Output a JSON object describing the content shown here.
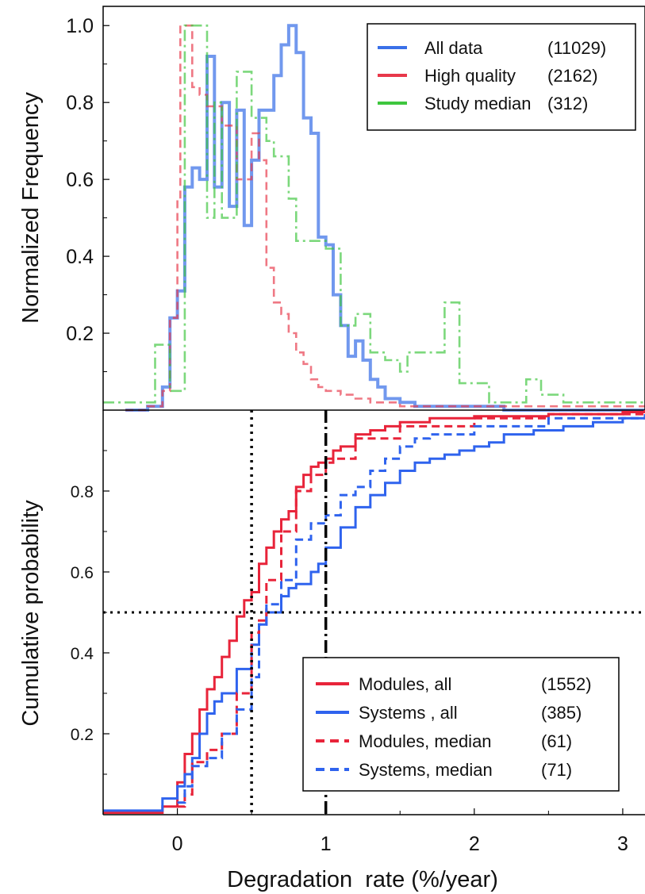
{
  "colors": {
    "all_data": "#3a70e8",
    "high_quality": "#e8384a",
    "study_median": "#3ec63e",
    "systems": "#2f63ee",
    "modules": "#e8243a",
    "guide": "#000000"
  },
  "x_axis": {
    "label": "Degradation  rate (%/year)",
    "range": [
      -0.5,
      3.15
    ],
    "ticks": [
      0,
      1,
      2,
      3
    ],
    "tick_labels": [
      "0",
      "1",
      "2",
      "3"
    ]
  },
  "chart_data": [
    {
      "type": "line",
      "step": true,
      "ylabel": "Normalized Frequency",
      "ylim": [
        0,
        1.05
      ],
      "yticks": [
        0.2,
        0.4,
        0.6,
        0.8,
        1.0
      ],
      "ytick_labels": [
        "0.2",
        "0.4",
        "0.6",
        "0.8",
        "1.0"
      ],
      "legend_position": "top-right",
      "series": [
        {
          "name": "All data",
          "count": "(11029)",
          "style": "solid",
          "x": [
            -0.35,
            -0.2,
            -0.1,
            -0.05,
            0,
            0.05,
            0.1,
            0.15,
            0.2,
            0.25,
            0.3,
            0.35,
            0.4,
            0.45,
            0.5,
            0.55,
            0.6,
            0.65,
            0.7,
            0.75,
            0.8,
            0.85,
            0.9,
            0.95,
            1.0,
            1.05,
            1.1,
            1.15,
            1.2,
            1.25,
            1.3,
            1.35,
            1.4,
            1.5,
            1.6,
            1.8,
            2.2,
            3.15
          ],
          "y": [
            0,
            0.01,
            0.06,
            0.24,
            0.31,
            0.58,
            0.63,
            0.6,
            0.92,
            0.58,
            0.8,
            0.53,
            0.78,
            0.48,
            0.65,
            0.78,
            0.78,
            0.87,
            0.95,
            1.0,
            0.93,
            0.76,
            0.72,
            0.45,
            0.43,
            0.3,
            0.22,
            0.14,
            0.18,
            0.13,
            0.08,
            0.06,
            0.03,
            0.02,
            0.01,
            0.01,
            0.0,
            0.0
          ]
        },
        {
          "name": "High quality",
          "count": "(2162)",
          "style": "dashed",
          "x": [
            -0.35,
            -0.2,
            -0.1,
            -0.05,
            0,
            0.02,
            0.05,
            0.1,
            0.15,
            0.2,
            0.3,
            0.4,
            0.5,
            0.55,
            0.6,
            0.65,
            0.7,
            0.75,
            0.8,
            0.85,
            0.9,
            0.95,
            1.0,
            1.1,
            1.2,
            1.3,
            1.4,
            1.5,
            1.6,
            1.8,
            3.15
          ],
          "y": [
            0,
            0.01,
            0.05,
            0.24,
            0.55,
            1.0,
            1.0,
            0.84,
            0.82,
            0.79,
            0.74,
            0.6,
            0.72,
            0.65,
            0.37,
            0.28,
            0.25,
            0.2,
            0.15,
            0.12,
            0.08,
            0.06,
            0.05,
            0.04,
            0.03,
            0.02,
            0.02,
            0.01,
            0.01,
            0.01,
            0.01
          ]
        },
        {
          "name": "Study median",
          "count": "(312)",
          "style": "dashdot",
          "x": [
            -0.5,
            -0.25,
            -0.15,
            -0.05,
            0,
            0.05,
            0.1,
            0.2,
            0.25,
            0.3,
            0.4,
            0.5,
            0.6,
            0.65,
            0.75,
            0.8,
            0.9,
            1.0,
            1.1,
            1.2,
            1.25,
            1.3,
            1.4,
            1.5,
            1.55,
            1.65,
            1.7,
            1.8,
            1.9,
            2.1,
            2.2,
            2.35,
            2.45,
            2.6,
            3.15
          ],
          "y": [
            0.02,
            0.02,
            0.17,
            0.05,
            0.05,
            1.0,
            1.0,
            0.5,
            0.8,
            0.5,
            0.88,
            0.76,
            0.7,
            0.66,
            0.55,
            0.44,
            0.44,
            0.42,
            0.22,
            0.25,
            0.25,
            0.15,
            0.13,
            0.1,
            0.15,
            0.15,
            0.15,
            0.28,
            0.07,
            0.02,
            0.02,
            0.08,
            0.04,
            0.02,
            0.02
          ]
        }
      ]
    },
    {
      "type": "line",
      "step": true,
      "ylabel": "Cumulative probability",
      "ylim": [
        0,
        1.0
      ],
      "yticks": [
        0.2,
        0.4,
        0.6,
        0.8
      ],
      "ytick_labels": [
        "0.2",
        "0.4",
        "0.6",
        "0.8"
      ],
      "legend_position": "bottom-right",
      "reference_lines": {
        "y": 0.5,
        "x_dotted": 0.5,
        "x_dashdot": 1.0
      },
      "series": [
        {
          "name": "Modules, all",
          "count": "(1552)",
          "style": "solid",
          "x": [
            -0.5,
            -0.2,
            -0.1,
            0,
            0.05,
            0.1,
            0.15,
            0.2,
            0.25,
            0.3,
            0.35,
            0.4,
            0.45,
            0.5,
            0.55,
            0.6,
            0.65,
            0.7,
            0.75,
            0.8,
            0.85,
            0.9,
            0.95,
            1.0,
            1.05,
            1.1,
            1.2,
            1.3,
            1.4,
            1.5,
            1.7,
            2.0,
            2.5,
            3.0,
            3.15
          ],
          "y": [
            0.005,
            0.005,
            0.02,
            0.08,
            0.15,
            0.2,
            0.26,
            0.31,
            0.34,
            0.39,
            0.43,
            0.49,
            0.53,
            0.55,
            0.62,
            0.66,
            0.7,
            0.73,
            0.75,
            0.81,
            0.84,
            0.86,
            0.87,
            0.88,
            0.9,
            0.91,
            0.94,
            0.95,
            0.96,
            0.97,
            0.98,
            0.985,
            0.99,
            0.995,
            1.0
          ]
        },
        {
          "name": "Systems , all",
          "count": "(385)",
          "style": "solid",
          "x": [
            -0.5,
            -0.2,
            -0.1,
            0,
            0.05,
            0.1,
            0.15,
            0.2,
            0.25,
            0.3,
            0.4,
            0.5,
            0.55,
            0.6,
            0.7,
            0.75,
            0.8,
            0.9,
            0.95,
            1.0,
            1.1,
            1.2,
            1.3,
            1.4,
            1.5,
            1.6,
            1.7,
            1.8,
            1.9,
            2.0,
            2.1,
            2.2,
            2.4,
            2.6,
            2.8,
            3.0,
            3.15
          ],
          "y": [
            0.01,
            0.01,
            0.04,
            0.07,
            0.1,
            0.14,
            0.2,
            0.25,
            0.28,
            0.3,
            0.36,
            0.42,
            0.47,
            0.5,
            0.54,
            0.56,
            0.57,
            0.6,
            0.62,
            0.66,
            0.71,
            0.76,
            0.79,
            0.82,
            0.85,
            0.87,
            0.88,
            0.89,
            0.9,
            0.91,
            0.92,
            0.94,
            0.95,
            0.96,
            0.97,
            0.98,
            0.99
          ]
        },
        {
          "name": "Modules, median",
          "count": "(61)",
          "style": "dashed",
          "x": [
            0,
            0.05,
            0.1,
            0.2,
            0.3,
            0.4,
            0.5,
            0.55,
            0.6,
            0.7,
            0.8,
            0.9,
            1.0,
            1.05,
            1.2,
            1.5,
            2.0,
            2.5,
            3.15
          ],
          "y": [
            0.02,
            0.05,
            0.13,
            0.16,
            0.2,
            0.3,
            0.45,
            0.48,
            0.58,
            0.7,
            0.8,
            0.84,
            0.87,
            0.88,
            0.93,
            0.96,
            0.98,
            0.99,
            1.0
          ]
        },
        {
          "name": "Systems, median",
          "count": "(71)",
          "style": "dashed",
          "x": [
            0,
            0.05,
            0.1,
            0.2,
            0.3,
            0.4,
            0.5,
            0.55,
            0.6,
            0.7,
            0.8,
            0.9,
            1.0,
            1.1,
            1.2,
            1.3,
            1.4,
            1.5,
            1.6,
            1.7,
            2.0,
            2.5,
            3.15
          ],
          "y": [
            0.03,
            0.07,
            0.12,
            0.14,
            0.2,
            0.26,
            0.34,
            0.47,
            0.52,
            0.58,
            0.68,
            0.72,
            0.74,
            0.79,
            0.81,
            0.85,
            0.88,
            0.91,
            0.93,
            0.94,
            0.96,
            0.98,
            0.99
          ]
        }
      ]
    }
  ]
}
